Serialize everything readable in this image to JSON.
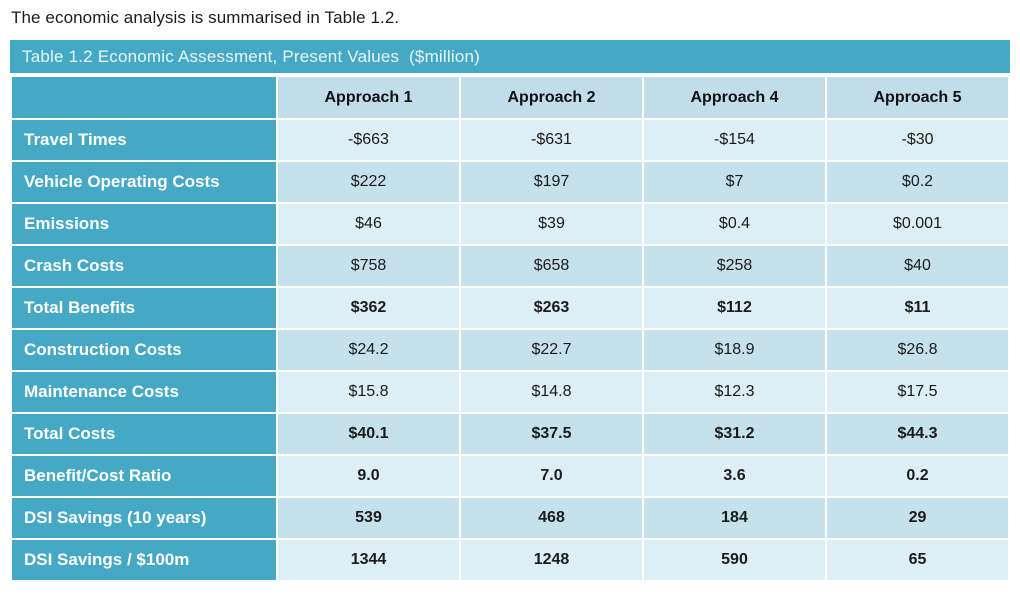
{
  "intro": "The economic analysis is summarised in Table 1.2.",
  "table": {
    "title": "Table 1.2 Economic Assessment, Present Values  ($million)",
    "columns": [
      "",
      "Approach 1",
      "Approach 2",
      "Approach 4",
      "Approach 5"
    ],
    "rows": [
      {
        "label": "Travel Times",
        "values": [
          "-$663",
          "-$631",
          "-$154",
          "-$30"
        ],
        "bold": false
      },
      {
        "label": "Vehicle Operating Costs",
        "values": [
          "$222",
          "$197",
          "$7",
          "$0.2"
        ],
        "bold": false
      },
      {
        "label": "Emissions",
        "values": [
          "$46",
          "$39",
          "$0.4",
          "$0.001"
        ],
        "bold": false
      },
      {
        "label": "Crash Costs",
        "values": [
          "$758",
          "$658",
          "$258",
          "$40"
        ],
        "bold": false
      },
      {
        "label": "Total Benefits",
        "values": [
          "$362",
          "$263",
          "$112",
          "$11"
        ],
        "bold": true
      },
      {
        "label": "Construction Costs",
        "values": [
          "$24.2",
          "$22.7",
          "$18.9",
          "$26.8"
        ],
        "bold": false
      },
      {
        "label": "Maintenance Costs",
        "values": [
          "$15.8",
          "$14.8",
          "$12.3",
          "$17.5"
        ],
        "bold": false
      },
      {
        "label": "Total Costs",
        "values": [
          "$40.1",
          "$37.5",
          "$31.2",
          "$44.3"
        ],
        "bold": true
      },
      {
        "label": "Benefit/Cost Ratio",
        "values": [
          "9.0",
          "7.0",
          "3.6",
          "0.2"
        ],
        "bold": true
      },
      {
        "label": "DSI Savings (10 years)",
        "values": [
          "539",
          "468",
          "184",
          "29"
        ],
        "bold": true
      },
      {
        "label": "DSI Savings / $100m",
        "values": [
          "1344",
          "1248",
          "590",
          "65"
        ],
        "bold": true
      }
    ],
    "colors": {
      "teal": "#45a9c6",
      "header_row_bg": "#c0dde9",
      "row_odd_bg": "#ddeef5",
      "row_even_bg": "#c5e2ec",
      "grid": "#ffffff",
      "title_text": "#e9f6fa",
      "cell_text": "#1b1b1b"
    }
  }
}
